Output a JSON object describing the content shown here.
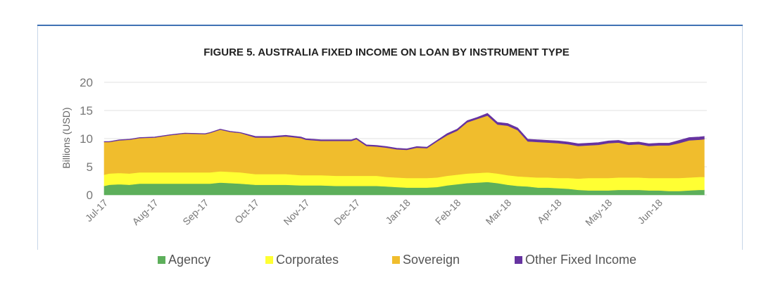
{
  "chart_data": {
    "type": "area",
    "stacked": true,
    "title": "FIGURE 5. AUSTRALIA FIXED INCOME ON LOAN BY INSTRUMENT TYPE",
    "xlabel": "",
    "ylabel": "Billions (USD)",
    "ylim": [
      0,
      20
    ],
    "yticks": [
      "0",
      "5",
      "10",
      "15",
      "20"
    ],
    "grid": true,
    "legend_position": "bottom",
    "categories": [
      "Jul-17",
      "Aug-17",
      "Sep-17",
      "Oct-17",
      "Nov-17",
      "Dec-17",
      "Jan-18",
      "Feb-18",
      "Mar-18",
      "Apr-18",
      "May-18",
      "Jun-18"
    ],
    "x": [
      0,
      0.1,
      0.3,
      0.5,
      0.7,
      1.0,
      1.3,
      1.6,
      2.0,
      2.1,
      2.3,
      2.5,
      2.7,
      3.0,
      3.3,
      3.6,
      3.9,
      4.0,
      4.3,
      4.6,
      4.9,
      5.0,
      5.2,
      5.4,
      5.6,
      5.8,
      6.0,
      6.2,
      6.4,
      6.6,
      6.8,
      7.0,
      7.2,
      7.4,
      7.6,
      7.8,
      8.0,
      8.2,
      8.4,
      8.6,
      8.8,
      9.0,
      9.2,
      9.4,
      9.6,
      9.8,
      10.0,
      10.2,
      10.4,
      10.6,
      10.8,
      11.0,
      11.2,
      11.4,
      11.6,
      11.8,
      11.9
    ],
    "series": [
      {
        "name": "Agency",
        "color": "#5daf5b",
        "values": [
          1.6,
          1.8,
          1.9,
          1.8,
          2.0,
          2.0,
          2.0,
          2.0,
          2.0,
          2.0,
          2.2,
          2.1,
          2.0,
          1.8,
          1.8,
          1.8,
          1.7,
          1.7,
          1.7,
          1.6,
          1.6,
          1.6,
          1.6,
          1.6,
          1.5,
          1.4,
          1.3,
          1.3,
          1.3,
          1.4,
          1.7,
          1.9,
          2.1,
          2.2,
          2.3,
          2.1,
          1.8,
          1.6,
          1.5,
          1.3,
          1.3,
          1.2,
          1.1,
          0.9,
          0.8,
          0.8,
          0.8,
          0.9,
          0.9,
          0.9,
          0.8,
          0.8,
          0.7,
          0.7,
          0.8,
          0.9,
          0.9
        ]
      },
      {
        "name": "Corporates",
        "color": "#ffff33",
        "values": [
          2.0,
          2.0,
          2.0,
          2.0,
          2.0,
          2.0,
          2.0,
          2.0,
          2.0,
          2.0,
          2.0,
          2.0,
          2.0,
          1.9,
          1.9,
          1.9,
          1.8,
          1.8,
          1.8,
          1.8,
          1.8,
          1.8,
          1.8,
          1.8,
          1.7,
          1.7,
          1.7,
          1.7,
          1.7,
          1.7,
          1.7,
          1.7,
          1.7,
          1.7,
          1.7,
          1.7,
          1.7,
          1.7,
          1.7,
          1.8,
          1.8,
          1.8,
          1.9,
          2.0,
          2.2,
          2.2,
          2.2,
          2.2,
          2.2,
          2.2,
          2.2,
          2.2,
          2.3,
          2.3,
          2.3,
          2.3,
          2.3
        ]
      },
      {
        "name": "Sovereign",
        "color": "#f0bd2d",
        "values": [
          5.8,
          5.6,
          5.8,
          6.0,
          6.1,
          6.2,
          6.6,
          6.9,
          6.8,
          7.0,
          7.4,
          7.1,
          7.0,
          6.5,
          6.5,
          6.7,
          6.6,
          6.3,
          6.1,
          6.2,
          6.2,
          6.5,
          5.3,
          5.2,
          5.2,
          5.0,
          5.0,
          5.4,
          5.3,
          6.4,
          7.2,
          7.8,
          9.1,
          9.6,
          10.1,
          8.7,
          8.8,
          8.2,
          6.3,
          6.3,
          6.2,
          6.2,
          6.0,
          5.8,
          5.8,
          5.9,
          6.2,
          6.2,
          5.8,
          5.9,
          5.7,
          5.8,
          5.8,
          6.2,
          6.6,
          6.6,
          6.7
        ]
      },
      {
        "name": "Other Fixed Income",
        "color": "#6633a0",
        "values": [
          0.1,
          0.1,
          0.1,
          0.1,
          0.1,
          0.1,
          0.1,
          0.1,
          0.1,
          0.1,
          0.1,
          0.1,
          0.1,
          0.2,
          0.2,
          0.2,
          0.2,
          0.2,
          0.2,
          0.2,
          0.2,
          0.2,
          0.2,
          0.2,
          0.2,
          0.2,
          0.2,
          0.2,
          0.2,
          0.2,
          0.3,
          0.3,
          0.3,
          0.3,
          0.4,
          0.4,
          0.4,
          0.4,
          0.4,
          0.4,
          0.4,
          0.4,
          0.4,
          0.4,
          0.4,
          0.4,
          0.4,
          0.4,
          0.4,
          0.4,
          0.4,
          0.4,
          0.4,
          0.5,
          0.5,
          0.5,
          0.5
        ]
      }
    ]
  }
}
